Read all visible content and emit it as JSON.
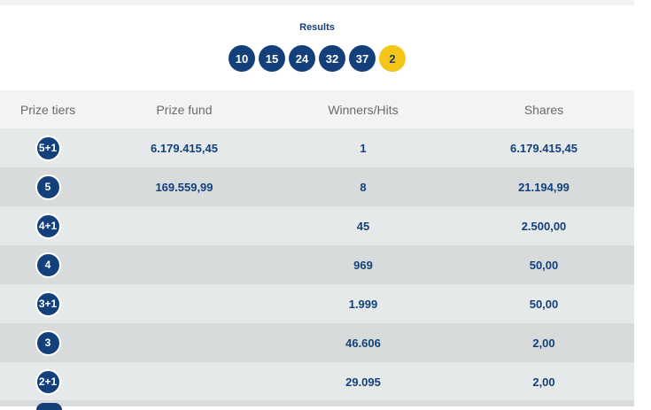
{
  "results": {
    "title": "Results",
    "numbers": [
      "10",
      "15",
      "24",
      "32",
      "37"
    ],
    "bonus": "2"
  },
  "table": {
    "headers": {
      "tier": "Prize tiers",
      "fund": "Prize fund",
      "winners": "Winners/Hits",
      "shares": "Shares"
    },
    "rows": [
      {
        "tier": "5+1",
        "fund": "6.179.415,45",
        "winners": "1",
        "shares": "6.179.415,45"
      },
      {
        "tier": "5",
        "fund": "169.559,99",
        "winners": "8",
        "shares": "21.194,99"
      },
      {
        "tier": "4+1",
        "fund": "",
        "winners": "45",
        "shares": "2.500,00"
      },
      {
        "tier": "4",
        "fund": "",
        "winners": "969",
        "shares": "50,00"
      },
      {
        "tier": "3+1",
        "fund": "",
        "winners": "1.999",
        "shares": "50,00"
      },
      {
        "tier": "3",
        "fund": "",
        "winners": "46.606",
        "shares": "2,00"
      },
      {
        "tier": "2+1",
        "fund": "",
        "winners": "29.095",
        "shares": "2,00"
      }
    ]
  },
  "colors": {
    "primary": "#13407a",
    "bonus": "#f5c518",
    "row_light": "#e6e9ea",
    "row_dark": "#d7dbdc"
  }
}
